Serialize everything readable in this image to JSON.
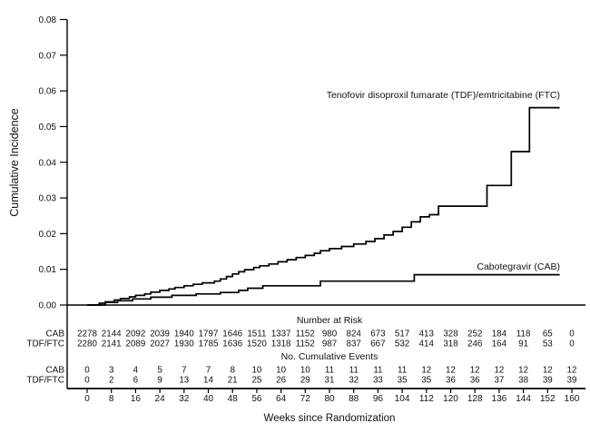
{
  "chart_data": {
    "type": "line",
    "variant": "kaplan_meier_step_cumulative_incidence",
    "title": "",
    "xlabel": "Weeks since Randomization",
    "ylabel": "Cumulative Incidence",
    "xlim": [
      0,
      160
    ],
    "ylim": [
      0,
      0.08
    ],
    "grid": false,
    "xticks": [
      0,
      8,
      16,
      24,
      32,
      40,
      48,
      56,
      64,
      72,
      80,
      88,
      96,
      104,
      112,
      120,
      128,
      136,
      144,
      152,
      160
    ],
    "yticks": [
      {
        "value": 0.0,
        "label": "0.00"
      },
      {
        "value": 0.01,
        "label": "0.01"
      },
      {
        "value": 0.02,
        "label": "0.02"
      },
      {
        "value": 0.03,
        "label": "0.03"
      },
      {
        "value": 0.04,
        "label": "0.04"
      },
      {
        "value": 0.05,
        "label": "0.05"
      },
      {
        "value": 0.06,
        "label": "0.06"
      },
      {
        "value": 0.07,
        "label": "0.07"
      },
      {
        "value": 0.08,
        "label": "0.08"
      }
    ],
    "series": [
      {
        "key": "tdf-ftc",
        "label": "Tenofovir disoproxil fumarate (TDF)/emtricitabine (FTC)",
        "color": "#000000",
        "end_week": 156,
        "steps": [
          [
            0,
            0
          ],
          [
            4,
            0.0005
          ],
          [
            6,
            0.0009
          ],
          [
            9,
            0.0014
          ],
          [
            11,
            0.0018
          ],
          [
            14,
            0.0023
          ],
          [
            16,
            0.0027
          ],
          [
            19,
            0.0031
          ],
          [
            21,
            0.0036
          ],
          [
            24,
            0.0041
          ],
          [
            27,
            0.0045
          ],
          [
            29,
            0.0049
          ],
          [
            32,
            0.0054
          ],
          [
            35,
            0.0058
          ],
          [
            38,
            0.0062
          ],
          [
            42,
            0.0067
          ],
          [
            44,
            0.0073
          ],
          [
            46,
            0.008
          ],
          [
            48,
            0.0087
          ],
          [
            50,
            0.0093
          ],
          [
            52,
            0.0099
          ],
          [
            55,
            0.0105
          ],
          [
            57,
            0.011
          ],
          [
            60,
            0.0115
          ],
          [
            63,
            0.0121
          ],
          [
            66,
            0.0127
          ],
          [
            69,
            0.0133
          ],
          [
            72,
            0.0139
          ],
          [
            75,
            0.0145
          ],
          [
            77,
            0.0152
          ],
          [
            80,
            0.0158
          ],
          [
            84,
            0.0164
          ],
          [
            88,
            0.0171
          ],
          [
            92,
            0.0178
          ],
          [
            95,
            0.0186
          ],
          [
            98,
            0.0196
          ],
          [
            101,
            0.0206
          ],
          [
            104,
            0.0218
          ],
          [
            107,
            0.0233
          ],
          [
            110,
            0.0247
          ],
          [
            113,
            0.0253
          ],
          [
            116,
            0.0277
          ],
          [
            132,
            0.0335
          ],
          [
            140,
            0.043
          ],
          [
            146,
            0.0553
          ]
        ]
      },
      {
        "key": "cab",
        "label": "Cabotegravir (CAB)",
        "color": "#000000",
        "end_week": 156,
        "steps": [
          [
            0,
            0
          ],
          [
            6,
            0.0007
          ],
          [
            10,
            0.0012
          ],
          [
            15,
            0.0017
          ],
          [
            21,
            0.0022
          ],
          [
            28,
            0.0027
          ],
          [
            36,
            0.0031
          ],
          [
            44,
            0.0035
          ],
          [
            50,
            0.0041
          ],
          [
            53,
            0.0047
          ],
          [
            58,
            0.0054
          ],
          [
            77,
            0.0067
          ],
          [
            108,
            0.0085
          ]
        ]
      }
    ],
    "tables": {
      "number_at_risk": {
        "title": "Number at Risk",
        "rows": [
          {
            "label": "CAB",
            "values": [
              2278,
              2144,
              2092,
              2039,
              1940,
              1797,
              1646,
              1511,
              1337,
              1152,
              980,
              824,
              673,
              517,
              413,
              328,
              252,
              184,
              118,
              65,
              0
            ]
          },
          {
            "label": "TDF/FTC",
            "values": [
              2280,
              2141,
              2089,
              2027,
              1930,
              1785,
              1636,
              1520,
              1318,
              1152,
              987,
              837,
              667,
              532,
              414,
              318,
              246,
              164,
              91,
              53,
              0
            ]
          }
        ]
      },
      "cumulative_events": {
        "title": "No. Cumulative Events",
        "rows": [
          {
            "label": "CAB",
            "values": [
              0,
              3,
              4,
              5,
              7,
              7,
              8,
              10,
              10,
              10,
              11,
              11,
              11,
              11,
              12,
              12,
              12,
              12,
              12,
              12,
              12
            ]
          },
          {
            "label": "TDF/FTC",
            "values": [
              0,
              2,
              6,
              9,
              13,
              14,
              21,
              25,
              26,
              29,
              31,
              32,
              33,
              35,
              35,
              36,
              36,
              37,
              38,
              39,
              39
            ]
          }
        ]
      }
    }
  }
}
